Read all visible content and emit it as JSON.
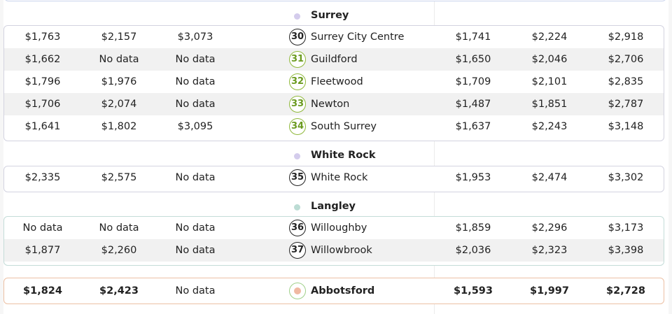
{
  "groups": [
    {
      "name": "Surrey",
      "dot_color": "#d4ccec",
      "rows": [
        {
          "v1": "$1,763",
          "v2": "$2,157",
          "v3": "$3,073",
          "num": "30",
          "badge": "black",
          "name": "Surrey City Centre",
          "v5": "$1,741",
          "v6": "$2,224",
          "v7": "$2,918"
        },
        {
          "v1": "$1,662",
          "v2": "No data",
          "v3": "No data",
          "num": "31",
          "badge": "green",
          "name": "Guildford",
          "v5": "$1,650",
          "v6": "$2,046",
          "v7": "$2,706"
        },
        {
          "v1": "$1,796",
          "v2": "$1,976",
          "v3": "No data",
          "num": "32",
          "badge": "green",
          "name": "Fleetwood",
          "v5": "$1,709",
          "v6": "$2,101",
          "v7": "$2,835"
        },
        {
          "v1": "$1,706",
          "v2": "$2,074",
          "v3": "No data",
          "num": "33",
          "badge": "green",
          "name": "Newton",
          "v5": "$1,487",
          "v6": "$1,851",
          "v7": "$2,787"
        },
        {
          "v1": "$1,641",
          "v2": "$1,802",
          "v3": "$3,095",
          "num": "34",
          "badge": "green",
          "name": "South Surrey",
          "v5": "$1,637",
          "v6": "$2,243",
          "v7": "$3,148"
        }
      ]
    },
    {
      "name": "White Rock",
      "dot_color": "#d4ccec",
      "rows": [
        {
          "v1": "$2,335",
          "v2": "$2,575",
          "v3": "No data",
          "num": "35",
          "badge": "black",
          "name": "White Rock",
          "v5": "$1,953",
          "v6": "$2,474",
          "v7": "$3,302"
        }
      ]
    },
    {
      "name": "Langley",
      "dot_color": "#bcdcd4",
      "rows": [
        {
          "v1": "No data",
          "v2": "No data",
          "v3": "No data",
          "num": "36",
          "badge": "black",
          "name": "Willoughby",
          "v5": "$1,859",
          "v6": "$2,296",
          "v7": "$3,173"
        },
        {
          "v1": "$1,877",
          "v2": "$2,260",
          "v3": "No data",
          "num": "37",
          "badge": "black",
          "name": "Willowbrook",
          "v5": "$2,036",
          "v6": "$2,323",
          "v7": "$3,398"
        }
      ]
    }
  ],
  "abbotsford": {
    "v1": "$1,824",
    "v2": "$2,423",
    "v3": "No data",
    "name": "Abbotsford",
    "v5": "$1,593",
    "v6": "$1,997",
    "v7": "$2,728",
    "badge_border": "#9fd089",
    "dot_color": "#f0b9a2"
  }
}
